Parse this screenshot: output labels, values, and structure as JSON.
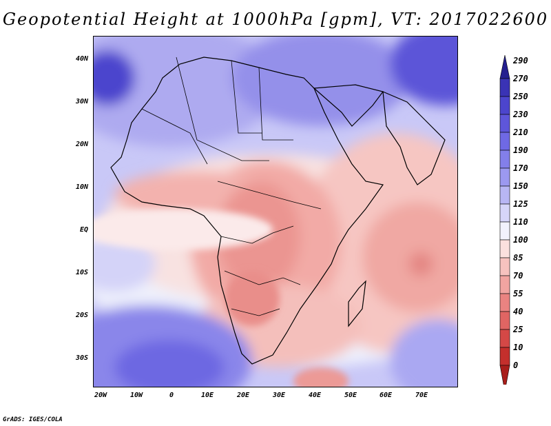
{
  "title": "Geopotential Height at 1000hPa [gpm], VT: 2017022600",
  "lat_labels": [
    "40N",
    "30N",
    "20N",
    "10N",
    "EQ",
    "10S",
    "20S",
    "30S"
  ],
  "lon_labels": [
    "20W",
    "10W",
    "0",
    "10E",
    "20E",
    "30E",
    "40E",
    "50E",
    "60E",
    "70E"
  ],
  "colorbar": {
    "levels": [
      "290",
      "270",
      "250",
      "230",
      "210",
      "190",
      "170",
      "150",
      "125",
      "110",
      "100",
      "85",
      "70",
      "55",
      "40",
      "25",
      "10",
      "0"
    ],
    "colors": [
      "#241f8f",
      "#3a33b5",
      "#4c45cd",
      "#5e56da",
      "#6f69e4",
      "#837fea",
      "#9c99f0",
      "#b8b6f4",
      "#d6d5f9",
      "#f2f2fd",
      "#fbe0de",
      "#f7c2bf",
      "#f1a4a1",
      "#ea8381",
      "#e06563",
      "#d44846",
      "#c42f2c",
      "#a81e1b"
    ]
  },
  "footer": "GrADS: IGES/COLA"
}
